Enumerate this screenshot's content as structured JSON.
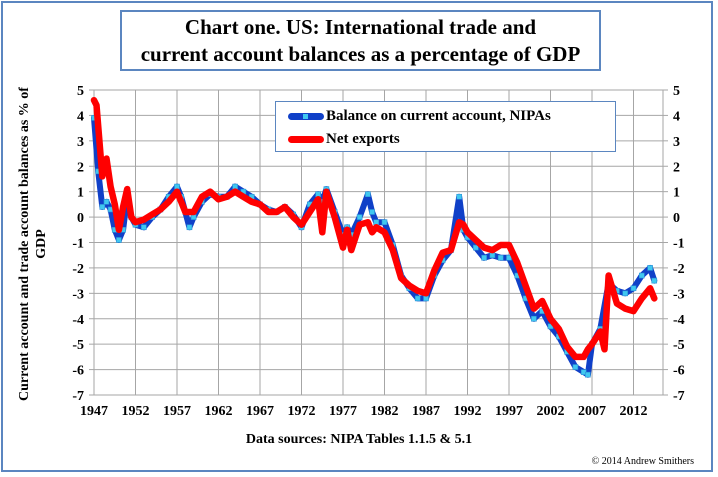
{
  "chart_data": {
    "type": "line",
    "title": "Chart one. US: International trade and current account balances as a percentage of GDP",
    "title_lines": [
      "Chart one. US: International trade and",
      "current account balances as a percentage of GDP"
    ],
    "xlabel": "Data sources: NIPA Tables 1.1.5 & 5.1",
    "ylabel": "Current account and trade account balances as % of GDP",
    "ylim": [
      -7,
      5
    ],
    "xlim": [
      1947,
      2015.5
    ],
    "y_ticks": [
      "5",
      "4",
      "3",
      "2",
      "1",
      "0",
      "-1",
      "-2",
      "-3",
      "-4",
      "-5",
      "-6",
      "-7"
    ],
    "y_tick_values": [
      5,
      4,
      3,
      2,
      1,
      0,
      -1,
      -2,
      -3,
      -4,
      -5,
      -6,
      -7
    ],
    "x_ticks": [
      "1947",
      "1952",
      "1957",
      "1962",
      "1967",
      "1972",
      "1977",
      "1982",
      "1987",
      "1992",
      "1997",
      "2002",
      "2007",
      "2012"
    ],
    "x_tick_values": [
      1947,
      1952,
      1957,
      1962,
      1967,
      1972,
      1977,
      1982,
      1987,
      1992,
      1997,
      2002,
      2007,
      2012
    ],
    "grid": true,
    "legend_position": "top-right",
    "secondary_y_axis": true,
    "series": [
      {
        "name": "Balance on current account, NIPAs",
        "color": "#1040c8",
        "marker_color": "#40c8f0",
        "x": [
          1947,
          1947.5,
          1948,
          1948.5,
          1949,
          1949.5,
          1950,
          1950.5,
          1951,
          1951.5,
          1952,
          1953,
          1954,
          1955,
          1956,
          1957,
          1957.5,
          1958,
          1958.5,
          1959,
          1960,
          1961,
          1962,
          1963,
          1964,
          1965,
          1966,
          1967,
          1968,
          1969,
          1970,
          1971,
          1972,
          1973,
          1974,
          1974.5,
          1975,
          1976,
          1977,
          1977.5,
          1978,
          1979,
          1980,
          1980.5,
          1981,
          1982,
          1983,
          1984,
          1985,
          1986,
          1987,
          1988,
          1989,
          1990,
          1991,
          1991.5,
          1992,
          1993,
          1994,
          1995,
          1996,
          1997,
          1998,
          1999,
          2000,
          2001,
          2002,
          2003,
          2004,
          2005,
          2006,
          2006.5,
          2007,
          2008,
          2009,
          2010,
          2011,
          2012,
          2013,
          2014,
          2014.5
        ],
        "values": [
          3.9,
          1.8,
          0.4,
          0.6,
          0.3,
          -0.5,
          -0.9,
          -0.5,
          0.8,
          0.0,
          -0.3,
          -0.4,
          0.0,
          0.3,
          0.8,
          1.2,
          0.8,
          0.2,
          -0.4,
          0.0,
          0.6,
          0.9,
          0.8,
          0.8,
          1.2,
          1.0,
          0.8,
          0.5,
          0.3,
          0.2,
          0.4,
          0.1,
          -0.4,
          0.5,
          0.9,
          0.6,
          1.1,
          0.2,
          -0.7,
          -0.4,
          -0.7,
          0.0,
          0.9,
          0.2,
          -0.2,
          -0.2,
          -1.1,
          -2.3,
          -2.8,
          -3.2,
          -3.2,
          -2.3,
          -1.7,
          -1.3,
          0.8,
          -0.5,
          -0.8,
          -1.2,
          -1.6,
          -1.5,
          -1.6,
          -1.6,
          -2.3,
          -3.2,
          -4.0,
          -3.7,
          -4.3,
          -4.7,
          -5.3,
          -5.9,
          -6.1,
          -6.2,
          -5.0,
          -4.4,
          -2.6,
          -2.9,
          -3.0,
          -2.8,
          -2.3,
          -2.0,
          -2.5
        ]
      },
      {
        "name": "Net exports",
        "color": "#ff0000",
        "x": [
          1947,
          1947.3,
          1948,
          1948.5,
          1949,
          1949.5,
          1950,
          1950.5,
          1951,
          1951.5,
          1952,
          1953,
          1954,
          1955,
          1956,
          1957,
          1957.5,
          1958,
          1958.5,
          1959,
          1960,
          1961,
          1962,
          1963,
          1964,
          1965,
          1966,
          1967,
          1968,
          1969,
          1970,
          1971,
          1972,
          1973,
          1974,
          1974.5,
          1975,
          1976,
          1977,
          1977.5,
          1978,
          1979,
          1980,
          1980.5,
          1981,
          1982,
          1983,
          1984,
          1985,
          1986,
          1987,
          1988,
          1989,
          1990,
          1991,
          1991.5,
          1992,
          1993,
          1994,
          1995,
          1996,
          1997,
          1998,
          1999,
          2000,
          2001,
          2002,
          2003,
          2004,
          2005,
          2006,
          2006.5,
          2007,
          2008,
          2008.5,
          2009,
          2010,
          2011,
          2012,
          2013,
          2014,
          2014.5
        ],
        "values": [
          4.6,
          4.4,
          1.6,
          2.3,
          1.2,
          0.5,
          -0.5,
          0.4,
          1.1,
          0.0,
          -0.2,
          -0.1,
          0.1,
          0.3,
          0.6,
          1.0,
          0.6,
          0.2,
          0.2,
          0.2,
          0.8,
          1.0,
          0.7,
          0.8,
          1.0,
          0.8,
          0.6,
          0.5,
          0.2,
          0.2,
          0.4,
          0.0,
          -0.3,
          0.2,
          0.7,
          -0.6,
          1.0,
          0.0,
          -1.2,
          -0.5,
          -1.3,
          -0.3,
          -0.2,
          -0.6,
          -0.4,
          -0.6,
          -1.3,
          -2.4,
          -2.7,
          -2.9,
          -3.0,
          -2.1,
          -1.4,
          -1.3,
          -0.2,
          -0.3,
          -0.6,
          -0.9,
          -1.2,
          -1.3,
          -1.1,
          -1.1,
          -1.8,
          -2.7,
          -3.6,
          -3.3,
          -4.0,
          -4.4,
          -5.1,
          -5.5,
          -5.5,
          -5.2,
          -5.0,
          -4.5,
          -5.2,
          -2.3,
          -3.4,
          -3.6,
          -3.7,
          -3.2,
          -2.8,
          -3.2
        ]
      }
    ]
  },
  "source_note": "Data sources: NIPA Tables 1.1.5 & 5.1",
  "copyright": "© 2014 Andrew Smithers",
  "legend": {
    "items": [
      "Balance on current account, NIPAs",
      "Net exports"
    ]
  },
  "colors": {
    "frame": "#5b86c0",
    "grid": "#a6a6a6",
    "current_account": "#1040c8",
    "current_account_marker": "#40c8f0",
    "net_exports": "#ff0000"
  }
}
